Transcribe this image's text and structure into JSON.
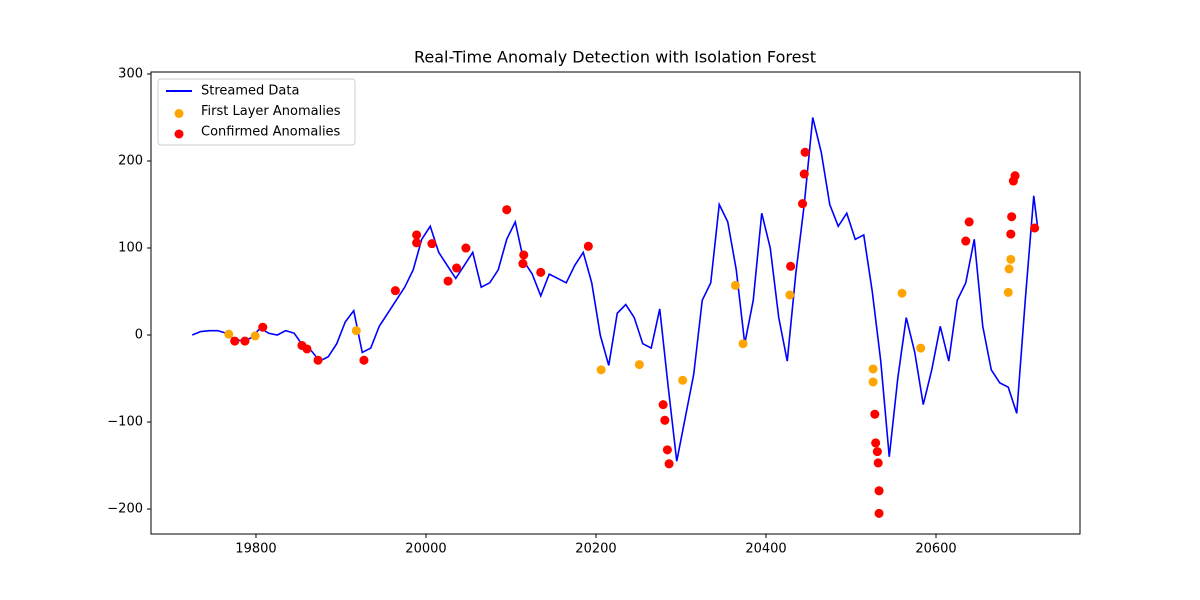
{
  "chart_data": {
    "type": "line",
    "title": "Real-Time Anomaly Detection with Isolation Forest",
    "xlim": [
      19676.5,
      20769.4
    ],
    "ylim": [
      -228.7,
      302.3
    ],
    "xticks": [
      19800,
      20000,
      20200,
      20400,
      20600
    ],
    "yticks": [
      {
        "value": -200,
        "label": "−200"
      },
      {
        "value": -100,
        "label": "−100"
      },
      0,
      100,
      200,
      300
    ],
    "grid": false,
    "legend": "upper-left",
    "series": [
      {
        "name": "Streamed Data",
        "type": "line",
        "color": "#0000ff",
        "x": [
          19725,
          19735,
          19745,
          19755,
          19765,
          19775,
          19785,
          19795,
          19805,
          19815,
          19825,
          19835,
          19845,
          19855,
          19865,
          19875,
          19885,
          19895,
          19905,
          19915,
          19925,
          19935,
          19945,
          19955,
          19965,
          19975,
          19985,
          19995,
          20005,
          20015,
          20025,
          20035,
          20045,
          20055,
          20065,
          20075,
          20085,
          20095,
          20105,
          20115,
          20125,
          20135,
          20145,
          20155,
          20165,
          20175,
          20185,
          20195,
          20205,
          20215,
          20225,
          20235,
          20245,
          20255,
          20265,
          20275,
          20285,
          20295,
          20305,
          20315,
          20325,
          20335,
          20345,
          20355,
          20365,
          20375,
          20385,
          20395,
          20405,
          20415,
          20425,
          20435,
          20445,
          20455,
          20465,
          20475,
          20485,
          20495,
          20505,
          20515,
          20525,
          20535,
          20545,
          20555,
          20565,
          20575,
          20585,
          20595,
          20605,
          20615,
          20625,
          20635,
          20645,
          20655,
          20665,
          20675,
          20685,
          20695,
          20705,
          20715,
          20720
        ],
        "values": [
          0,
          4,
          5,
          5,
          2,
          -5,
          -7,
          -3,
          8,
          2,
          0,
          5,
          2,
          -12,
          -18,
          -30,
          -25,
          -10,
          15,
          28,
          -20,
          -15,
          10,
          25,
          40,
          55,
          75,
          110,
          125,
          95,
          80,
          65,
          80,
          95,
          55,
          60,
          75,
          110,
          130,
          85,
          70,
          45,
          70,
          65,
          60,
          80,
          95,
          60,
          0,
          -35,
          25,
          35,
          20,
          -10,
          -15,
          30,
          -60,
          -145,
          -95,
          -45,
          40,
          60,
          150,
          130,
          75,
          -10,
          40,
          140,
          100,
          20,
          -30,
          70,
          150,
          250,
          210,
          150,
          125,
          140,
          110,
          115,
          50,
          -30,
          -140,
          -50,
          20,
          -20,
          -80,
          -40,
          10,
          -30,
          40,
          60,
          110,
          10,
          -40,
          -55,
          -60,
          -90,
          40,
          160,
          120
        ]
      },
      {
        "name": "First Layer Anomalies",
        "type": "scatter",
        "color": "#ffa500",
        "x": [
          19768,
          19799,
          19918,
          20206,
          20251,
          20302,
          20364,
          20373,
          20428,
          20526,
          20526,
          20560,
          20582,
          20685,
          20686,
          20688,
          19775,
          19787,
          19808,
          19854,
          19860,
          19873,
          19927,
          19964,
          19989,
          19989,
          20007,
          20026,
          20036,
          20047,
          20095,
          20114,
          20115,
          20135,
          20191,
          20279,
          20281,
          20284,
          20286,
          20429,
          20443,
          20445,
          20446,
          20528,
          20529,
          20531,
          20532,
          20533,
          20533,
          20635,
          20639,
          20688,
          20689,
          20691,
          20693,
          20716
        ],
        "values": [
          1,
          -1,
          5,
          -40,
          -34,
          -52,
          57,
          -10,
          46,
          -39,
          -54,
          48,
          -15,
          49,
          76,
          87,
          -7,
          -7,
          9,
          -12,
          -16,
          -29,
          -29,
          51,
          106,
          115,
          105,
          62,
          77,
          100,
          144,
          82,
          92,
          72,
          102,
          -80,
          -98,
          -132,
          -148,
          79,
          151,
          185,
          210,
          -91,
          -124,
          -134,
          -147,
          -179,
          -205,
          108,
          130,
          116,
          136,
          177,
          183,
          123
        ]
      },
      {
        "name": "Confirmed Anomalies",
        "type": "scatter",
        "color": "#ff0000",
        "x": [
          19775,
          19787,
          19808,
          19854,
          19860,
          19873,
          19927,
          19964,
          19989,
          19989,
          20007,
          20026,
          20036,
          20047,
          20095,
          20114,
          20115,
          20135,
          20191,
          20279,
          20281,
          20284,
          20286,
          20429,
          20443,
          20445,
          20446,
          20528,
          20529,
          20531,
          20532,
          20533,
          20533,
          20635,
          20639,
          20688,
          20689,
          20691,
          20693,
          20716
        ],
        "values": [
          -7,
          -7,
          9,
          -12,
          -16,
          -29,
          -29,
          51,
          106,
          115,
          105,
          62,
          77,
          100,
          144,
          82,
          92,
          72,
          102,
          -80,
          -98,
          -132,
          -148,
          79,
          151,
          185,
          210,
          -91,
          -124,
          -134,
          -147,
          -179,
          -205,
          108,
          130,
          116,
          136,
          177,
          183,
          123
        ]
      }
    ]
  }
}
